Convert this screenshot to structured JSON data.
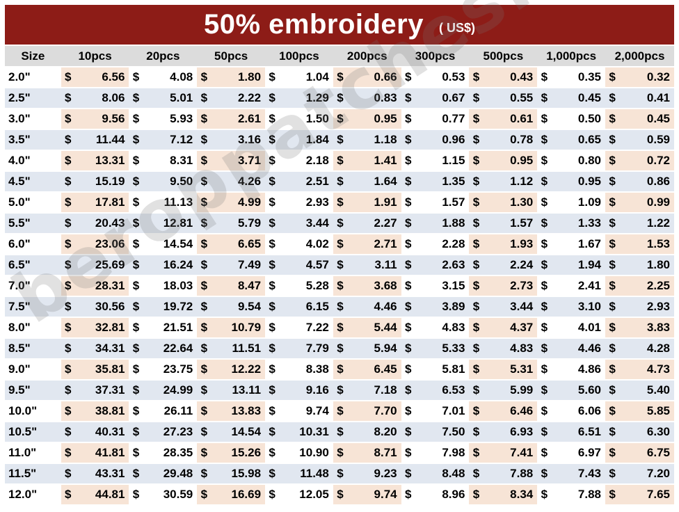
{
  "title": {
    "main": "50% embroidery",
    "sub": "( US$)"
  },
  "watermark": "beroppatches.com",
  "currency_symbol": "$",
  "columns": [
    "Size",
    "10pcs",
    "20pcs",
    "50pcs",
    "100pcs",
    "200pcs",
    "300pcs",
    "500pcs",
    "1,000pcs",
    "2,000pcs"
  ],
  "rows": [
    {
      "size": "2.0\"",
      "prices": [
        "6.56",
        "4.08",
        "1.80",
        "1.04",
        "0.66",
        "0.53",
        "0.43",
        "0.35",
        "0.32"
      ]
    },
    {
      "size": "2.5\"",
      "prices": [
        "8.06",
        "5.01",
        "2.22",
        "1.29",
        "0.83",
        "0.67",
        "0.55",
        "0.45",
        "0.41"
      ]
    },
    {
      "size": "3.0\"",
      "prices": [
        "9.56",
        "5.93",
        "2.61",
        "1.50",
        "0.95",
        "0.77",
        "0.61",
        "0.50",
        "0.45"
      ]
    },
    {
      "size": "3.5\"",
      "prices": [
        "11.44",
        "7.12",
        "3.16",
        "1.84",
        "1.18",
        "0.96",
        "0.78",
        "0.65",
        "0.59"
      ]
    },
    {
      "size": "4.0\"",
      "prices": [
        "13.31",
        "8.31",
        "3.71",
        "2.18",
        "1.41",
        "1.15",
        "0.95",
        "0.80",
        "0.72"
      ]
    },
    {
      "size": "4.5\"",
      "prices": [
        "15.19",
        "9.50",
        "4.26",
        "2.51",
        "1.64",
        "1.35",
        "1.12",
        "0.95",
        "0.86"
      ]
    },
    {
      "size": "5.0\"",
      "prices": [
        "17.81",
        "11.13",
        "4.99",
        "2.93",
        "1.91",
        "1.57",
        "1.30",
        "1.09",
        "0.99"
      ]
    },
    {
      "size": "5.5\"",
      "prices": [
        "20.43",
        "12.81",
        "5.79",
        "3.44",
        "2.27",
        "1.88",
        "1.57",
        "1.33",
        "1.22"
      ]
    },
    {
      "size": "6.0\"",
      "prices": [
        "23.06",
        "14.54",
        "6.65",
        "4.02",
        "2.71",
        "2.28",
        "1.93",
        "1.67",
        "1.53"
      ]
    },
    {
      "size": "6.5\"",
      "prices": [
        "25.69",
        "16.24",
        "7.49",
        "4.57",
        "3.11",
        "2.63",
        "2.24",
        "1.94",
        "1.80"
      ]
    },
    {
      "size": "7.0\"",
      "prices": [
        "28.31",
        "18.03",
        "8.47",
        "5.28",
        "3.68",
        "3.15",
        "2.73",
        "2.41",
        "2.25"
      ]
    },
    {
      "size": "7.5\"",
      "prices": [
        "30.56",
        "19.72",
        "9.54",
        "6.15",
        "4.46",
        "3.89",
        "3.44",
        "3.10",
        "2.93"
      ]
    },
    {
      "size": "8.0\"",
      "prices": [
        "32.81",
        "21.51",
        "10.79",
        "7.22",
        "5.44",
        "4.83",
        "4.37",
        "4.01",
        "3.83"
      ]
    },
    {
      "size": "8.5\"",
      "prices": [
        "34.31",
        "22.64",
        "11.51",
        "7.79",
        "5.94",
        "5.33",
        "4.83",
        "4.46",
        "4.28"
      ]
    },
    {
      "size": "9.0\"",
      "prices": [
        "35.81",
        "23.75",
        "12.22",
        "8.38",
        "6.45",
        "5.81",
        "5.31",
        "4.86",
        "4.73"
      ]
    },
    {
      "size": "9.5\"",
      "prices": [
        "37.31",
        "24.99",
        "13.11",
        "9.16",
        "7.18",
        "6.53",
        "5.99",
        "5.60",
        "5.40"
      ]
    },
    {
      "size": "10.0\"",
      "prices": [
        "38.81",
        "26.11",
        "13.83",
        "9.74",
        "7.70",
        "7.01",
        "6.46",
        "6.06",
        "5.85"
      ]
    },
    {
      "size": "10.5\"",
      "prices": [
        "40.31",
        "27.23",
        "14.54",
        "10.31",
        "8.20",
        "7.50",
        "6.93",
        "6.51",
        "6.30"
      ]
    },
    {
      "size": "11.0\"",
      "prices": [
        "41.81",
        "28.35",
        "15.26",
        "10.90",
        "8.71",
        "7.98",
        "7.41",
        "6.97",
        "6.75"
      ]
    },
    {
      "size": "11.5\"",
      "prices": [
        "43.31",
        "29.48",
        "15.98",
        "11.48",
        "9.23",
        "8.48",
        "7.88",
        "7.43",
        "7.20"
      ]
    },
    {
      "size": "12.0\"",
      "prices": [
        "44.81",
        "30.59",
        "16.69",
        "12.05",
        "9.74",
        "8.96",
        "8.34",
        "7.88",
        "7.65"
      ]
    }
  ],
  "colors": {
    "title_bar": "#8d1c17",
    "header_bg": "#dcdcdc",
    "stripe_blue": "#e1e7f0",
    "stripe_peach": "#f7e4d6"
  }
}
